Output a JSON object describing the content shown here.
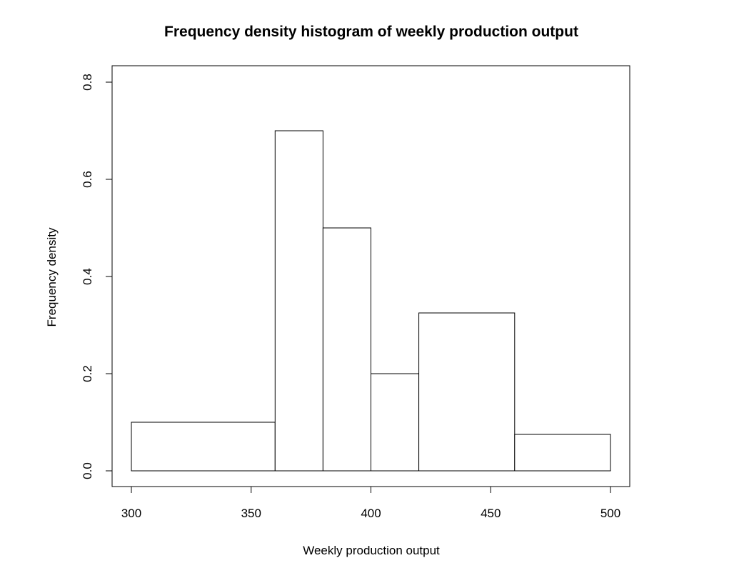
{
  "chart_data": {
    "type": "bar",
    "subtype": "histogram",
    "title": "Frequency density histogram of weekly production output",
    "xlabel": "Weekly production output",
    "ylabel": "Frequency density",
    "xlim": [
      300,
      500
    ],
    "ylim": [
      0,
      0.8
    ],
    "x_ticks": [
      300,
      350,
      400,
      450,
      500
    ],
    "y_ticks": [
      0.0,
      0.2,
      0.4,
      0.6,
      0.8
    ],
    "x_tick_labels": [
      "300",
      "350",
      "400",
      "450",
      "500"
    ],
    "y_tick_labels": [
      "0.0",
      "0.2",
      "0.4",
      "0.6",
      "0.8"
    ],
    "bins": [
      {
        "start": 300,
        "end": 360,
        "density": 0.1
      },
      {
        "start": 360,
        "end": 380,
        "density": 0.7
      },
      {
        "start": 380,
        "end": 400,
        "density": 0.5
      },
      {
        "start": 400,
        "end": 420,
        "density": 0.2
      },
      {
        "start": 420,
        "end": 460,
        "density": 0.325
      },
      {
        "start": 460,
        "end": 500,
        "density": 0.075
      }
    ],
    "bar_fill": "#ffffff",
    "bar_stroke": "#000000",
    "grid": false,
    "legend": "none"
  }
}
